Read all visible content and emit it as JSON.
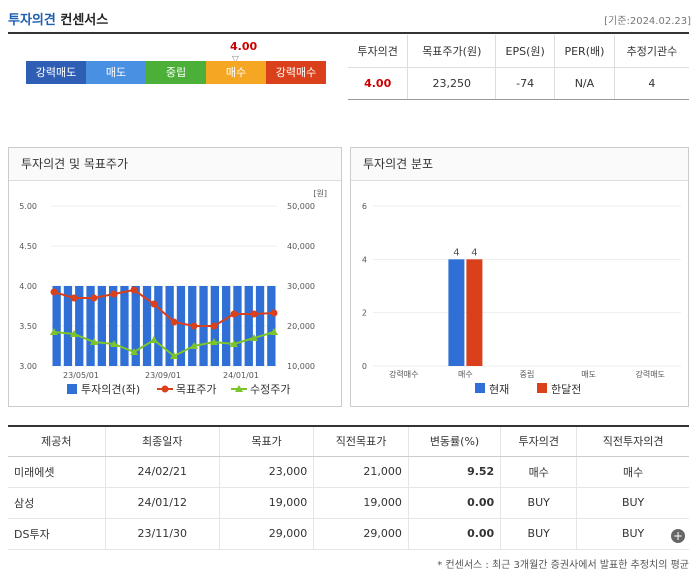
{
  "header": {
    "title_a": "투자의견",
    "title_b": "컨센서스",
    "date": "[기준:2024.02.23]"
  },
  "scale": {
    "labels": [
      "강력매도",
      "매도",
      "중립",
      "매수",
      "강력매수"
    ],
    "colors": [
      "#2f5fb5",
      "#4a90e2",
      "#4caf38",
      "#f5a623",
      "#d9401b"
    ],
    "marker_value": "4.00",
    "marker_icon": "triangle-down"
  },
  "summary": {
    "headers": [
      "투자의견",
      "목표주가(원)",
      "EPS(원)",
      "PER(배)",
      "추정기관수"
    ],
    "values": [
      "4.00",
      "23,250",
      "-74",
      "N/A",
      "4"
    ]
  },
  "panel_left": {
    "title": "투자의견 및 목표주가"
  },
  "panel_right": {
    "title": "투자의견 분포"
  },
  "chart_data": [
    {
      "type": "bar+line",
      "title": "투자의견 및 목표주가",
      "x_ticks": [
        "23/05/01",
        "23/09/01",
        "24/01/01"
      ],
      "y_left": {
        "ticks": [
          "5.00",
          "4.50",
          "4.00",
          "3.50",
          "3.00"
        ],
        "range": [
          3.0,
          5.0
        ]
      },
      "y_right": {
        "ticks": [
          "50,000",
          "40,000",
          "30,000",
          "20,000",
          "10,000"
        ],
        "range": [
          10000,
          50000
        ],
        "unit": "[원]"
      },
      "opinion": [
        4,
        4,
        4,
        4,
        4,
        4,
        4,
        4,
        4,
        4,
        4,
        4,
        4,
        4,
        4,
        4,
        4,
        4,
        4,
        4
      ],
      "target_price": [
        28500,
        27000,
        27000,
        28000,
        29000,
        25500,
        21000,
        20000,
        20000,
        23000,
        23000,
        23250
      ],
      "stock_price": [
        18500,
        18000,
        16000,
        15500,
        13500,
        16500,
        12500,
        15000,
        16000,
        15500,
        17000,
        18500
      ],
      "legend": [
        "투자의견(좌)",
        "목표주가",
        "수정주가"
      ],
      "colors": {
        "opinion": "#2f6fd6",
        "target": "#d9401b",
        "stock": "#7cc42a"
      }
    },
    {
      "type": "bar",
      "title": "투자의견 분포",
      "categories": [
        "강력매수",
        "매수",
        "중립",
        "매도",
        "강력매도"
      ],
      "series": [
        {
          "name": "현재",
          "values": [
            0,
            4,
            0,
            0,
            0
          ]
        },
        {
          "name": "한달전",
          "values": [
            0,
            4,
            0,
            0,
            0
          ]
        }
      ],
      "y_ticks": [
        "6",
        "4",
        "2",
        "0"
      ],
      "ylim": [
        0,
        6
      ],
      "colors": {
        "현재": "#2f6fd6",
        "한달전": "#d9401b"
      }
    }
  ],
  "breakdown": {
    "headers": [
      "제공처",
      "최종일자",
      "목표가",
      "직전목표가",
      "변동률(%)",
      "투자의견",
      "직전투자의견"
    ],
    "rows": [
      [
        "미래에셋",
        "24/02/21",
        "23,000",
        "21,000",
        "9.52",
        "매수",
        "매수"
      ],
      [
        "삼성",
        "24/01/12",
        "19,000",
        "19,000",
        "0.00",
        "BUY",
        "BUY"
      ],
      [
        "DS투자",
        "23/11/30",
        "29,000",
        "29,000",
        "0.00",
        "BUY",
        "BUY"
      ]
    ]
  },
  "more_icon": "plus-icon",
  "note": "* 컨센서스 : 최근 3개월간 증권사에서 발표한 추정치의 평균"
}
